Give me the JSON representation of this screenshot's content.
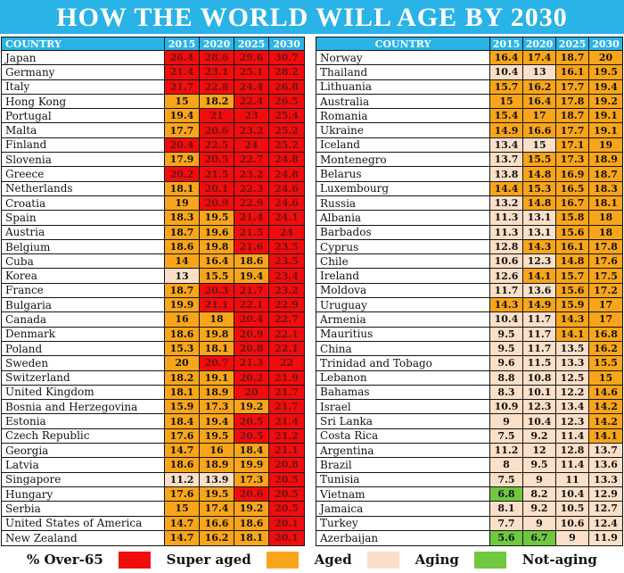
{
  "title": "HOW THE WORLD WILL AGE BY 2030",
  "columns": [
    "COUNTRY",
    "2015",
    "2020",
    "2025",
    "2030"
  ],
  "colors": {
    "header_bg": "#2ab3e6",
    "title_bg": "#2ab3e6",
    "super_aged": "#f10d0d",
    "aged": "#f9a51b",
    "aging": "#fbdfc8",
    "not_aging": "#6fc840",
    "super_aged_text": "#6e1111"
  },
  "legend": {
    "label": "% Over-65",
    "items": [
      {
        "key": "super-aged",
        "label": "Super aged",
        "color": "#f10d0d"
      },
      {
        "key": "aged",
        "label": "Aged",
        "color": "#f9a51b"
      },
      {
        "key": "aging",
        "label": "Aging",
        "color": "#fbdfc8"
      },
      {
        "key": "not-aging",
        "label": "Not-aging",
        "color": "#6fc840"
      }
    ]
  },
  "chart_data": {
    "type": "table",
    "title": "HOW THE WORLD WILL AGE BY 2030",
    "value_unit": "% Over-65",
    "years": [
      "2015",
      "2020",
      "2025",
      "2030"
    ],
    "level_legend": {
      "S": "Super aged",
      "A": "Aged",
      "G": "Aging",
      "N": "Not-aging"
    },
    "left_table": {
      "rows": [
        {
          "country": "Japan",
          "values": [
            "26.4",
            "28.6",
            "29.6",
            "30.7"
          ],
          "levels": [
            "S",
            "S",
            "S",
            "S"
          ]
        },
        {
          "country": "Germany",
          "values": [
            "21.4",
            "23.1",
            "25.1",
            "28.2"
          ],
          "levels": [
            "S",
            "S",
            "S",
            "S"
          ]
        },
        {
          "country": "Italy",
          "values": [
            "21.7",
            "22.8",
            "24.4",
            "26.8"
          ],
          "levels": [
            "S",
            "S",
            "S",
            "S"
          ]
        },
        {
          "country": "Hong Kong",
          "values": [
            "15",
            "18.2",
            "22.4",
            "26.5"
          ],
          "levels": [
            "A",
            "A",
            "S",
            "S"
          ]
        },
        {
          "country": "Portugal",
          "values": [
            "19.4",
            "21",
            "23",
            "25.4"
          ],
          "levels": [
            "A",
            "S",
            "S",
            "S"
          ]
        },
        {
          "country": "Malta",
          "values": [
            "17.7",
            "20.6",
            "23.2",
            "25.2"
          ],
          "levels": [
            "A",
            "S",
            "S",
            "S"
          ]
        },
        {
          "country": "Finland",
          "values": [
            "20.4",
            "22.5",
            "24",
            "25.2"
          ],
          "levels": [
            "S",
            "S",
            "S",
            "S"
          ]
        },
        {
          "country": "Slovenia",
          "values": [
            "17.9",
            "20.5",
            "22.7",
            "24.8"
          ],
          "levels": [
            "A",
            "S",
            "S",
            "S"
          ]
        },
        {
          "country": "Greece",
          "values": [
            "20.2",
            "21.5",
            "23.2",
            "24.8"
          ],
          "levels": [
            "S",
            "S",
            "S",
            "S"
          ]
        },
        {
          "country": "Netherlands",
          "values": [
            "18.1",
            "20.1",
            "22.3",
            "24.6"
          ],
          "levels": [
            "A",
            "S",
            "S",
            "S"
          ]
        },
        {
          "country": "Croatia",
          "values": [
            "19",
            "20.9",
            "22.9",
            "24.6"
          ],
          "levels": [
            "A",
            "S",
            "S",
            "S"
          ]
        },
        {
          "country": "Spain",
          "values": [
            "18.3",
            "19.5",
            "21.4",
            "24.1"
          ],
          "levels": [
            "A",
            "A",
            "S",
            "S"
          ]
        },
        {
          "country": "Austria",
          "values": [
            "18.7",
            "19.6",
            "21.5",
            "24"
          ],
          "levels": [
            "A",
            "A",
            "S",
            "S"
          ]
        },
        {
          "country": "Belgium",
          "values": [
            "18.6",
            "19.8",
            "21.6",
            "23.5"
          ],
          "levels": [
            "A",
            "A",
            "S",
            "S"
          ]
        },
        {
          "country": "Cuba",
          "values": [
            "14",
            "16.4",
            "18.6",
            "23.5"
          ],
          "levels": [
            "A",
            "A",
            "A",
            "S"
          ]
        },
        {
          "country": "Korea",
          "values": [
            "13",
            "15.5",
            "19.4",
            "23.4"
          ],
          "levels": [
            "G",
            "A",
            "A",
            "S"
          ]
        },
        {
          "country": "France",
          "values": [
            "18.7",
            "20.3",
            "21.7",
            "23.2"
          ],
          "levels": [
            "A",
            "S",
            "S",
            "S"
          ]
        },
        {
          "country": "Bulgaria",
          "values": [
            "19.9",
            "21.1",
            "22.1",
            "22.9"
          ],
          "levels": [
            "A",
            "S",
            "S",
            "S"
          ]
        },
        {
          "country": "Canada",
          "values": [
            "16",
            "18",
            "20.4",
            "22.7"
          ],
          "levels": [
            "A",
            "A",
            "S",
            "S"
          ]
        },
        {
          "country": "Denmark",
          "values": [
            "18.6",
            "19.8",
            "20.9",
            "22.1"
          ],
          "levels": [
            "A",
            "A",
            "S",
            "S"
          ]
        },
        {
          "country": "Poland",
          "values": [
            "15.3",
            "18.1",
            "20.8",
            "22.1"
          ],
          "levels": [
            "A",
            "A",
            "S",
            "S"
          ]
        },
        {
          "country": "Sweden",
          "values": [
            "20",
            "20.7",
            "21.3",
            "22"
          ],
          "levels": [
            "A",
            "S",
            "S",
            "S"
          ]
        },
        {
          "country": "Switzerland",
          "values": [
            "18.2",
            "19.1",
            "20.2",
            "21.9"
          ],
          "levels": [
            "A",
            "A",
            "S",
            "S"
          ]
        },
        {
          "country": "United Kingdom",
          "values": [
            "18.1",
            "18.9",
            "20",
            "21.7"
          ],
          "levels": [
            "A",
            "A",
            "S",
            "S"
          ]
        },
        {
          "country": "Bosnia and Herzegovina",
          "values": [
            "15.9",
            "17.3",
            "19.2",
            "21.7"
          ],
          "levels": [
            "A",
            "A",
            "A",
            "S"
          ]
        },
        {
          "country": "Estonia",
          "values": [
            "18.4",
            "19.4",
            "20.5",
            "21.4"
          ],
          "levels": [
            "A",
            "A",
            "S",
            "S"
          ]
        },
        {
          "country": "Czech Republic",
          "values": [
            "17.6",
            "19.5",
            "20.5",
            "21.2"
          ],
          "levels": [
            "A",
            "A",
            "S",
            "S"
          ]
        },
        {
          "country": "Georgia",
          "values": [
            "14.7",
            "16",
            "18.4",
            "21.1"
          ],
          "levels": [
            "A",
            "A",
            "A",
            "S"
          ]
        },
        {
          "country": "Latvia",
          "values": [
            "18.6",
            "18.9",
            "19.9",
            "20.8"
          ],
          "levels": [
            "A",
            "A",
            "A",
            "S"
          ]
        },
        {
          "country": "Singapore",
          "values": [
            "11.2",
            "13.9",
            "17.3",
            "20.5"
          ],
          "levels": [
            "G",
            "G",
            "A",
            "S"
          ]
        },
        {
          "country": "Hungary",
          "values": [
            "17.6",
            "19.5",
            "20.6",
            "20.5"
          ],
          "levels": [
            "A",
            "A",
            "S",
            "S"
          ]
        },
        {
          "country": "Serbia",
          "values": [
            "15",
            "17.4",
            "19.2",
            "20.5"
          ],
          "levels": [
            "A",
            "A",
            "A",
            "S"
          ]
        },
        {
          "country": "United States of America",
          "values": [
            "14.7",
            "16.6",
            "18.6",
            "20.1"
          ],
          "levels": [
            "A",
            "A",
            "A",
            "S"
          ]
        },
        {
          "country": "New Zealand",
          "values": [
            "14.7",
            "16.2",
            "18.1",
            "20.1"
          ],
          "levels": [
            "A",
            "A",
            "A",
            "S"
          ]
        }
      ]
    },
    "right_table": {
      "rows": [
        {
          "country": "Norway",
          "values": [
            "16.4",
            "17.4",
            "18.7",
            "20"
          ],
          "levels": [
            "A",
            "A",
            "A",
            "A"
          ]
        },
        {
          "country": "Thailand",
          "values": [
            "10.4",
            "13",
            "16.1",
            "19.5"
          ],
          "levels": [
            "G",
            "G",
            "A",
            "A"
          ]
        },
        {
          "country": "Lithuania",
          "values": [
            "15.7",
            "16.2",
            "17.7",
            "19.4"
          ],
          "levels": [
            "A",
            "A",
            "A",
            "A"
          ]
        },
        {
          "country": "Australia",
          "values": [
            "15",
            "16.4",
            "17.8",
            "19.2"
          ],
          "levels": [
            "A",
            "A",
            "A",
            "A"
          ]
        },
        {
          "country": "Romania",
          "values": [
            "15.4",
            "17",
            "18.7",
            "19.1"
          ],
          "levels": [
            "A",
            "A",
            "A",
            "A"
          ]
        },
        {
          "country": "Ukraine",
          "values": [
            "14.9",
            "16.6",
            "17.7",
            "19.1"
          ],
          "levels": [
            "A",
            "A",
            "A",
            "A"
          ]
        },
        {
          "country": "Iceland",
          "values": [
            "13.4",
            "15",
            "17.1",
            "19"
          ],
          "levels": [
            "G",
            "G",
            "A",
            "A"
          ]
        },
        {
          "country": "Montenegro",
          "values": [
            "13.7",
            "15.5",
            "17.3",
            "18.9"
          ],
          "levels": [
            "G",
            "A",
            "A",
            "A"
          ]
        },
        {
          "country": "Belarus",
          "values": [
            "13.8",
            "14.8",
            "16.9",
            "18.7"
          ],
          "levels": [
            "G",
            "A",
            "A",
            "A"
          ]
        },
        {
          "country": "Luxembourg",
          "values": [
            "14.4",
            "15.3",
            "16.5",
            "18.3"
          ],
          "levels": [
            "A",
            "A",
            "A",
            "A"
          ]
        },
        {
          "country": "Russia",
          "values": [
            "13.2",
            "14.8",
            "16.7",
            "18.1"
          ],
          "levels": [
            "G",
            "A",
            "A",
            "A"
          ]
        },
        {
          "country": "Albania",
          "values": [
            "11.3",
            "13.1",
            "15.8",
            "18"
          ],
          "levels": [
            "G",
            "G",
            "A",
            "A"
          ]
        },
        {
          "country": "Barbados",
          "values": [
            "11.3",
            "13.1",
            "15.6",
            "18"
          ],
          "levels": [
            "G",
            "G",
            "A",
            "A"
          ]
        },
        {
          "country": "Cyprus",
          "values": [
            "12.8",
            "14.3",
            "16.1",
            "17.8"
          ],
          "levels": [
            "G",
            "A",
            "A",
            "A"
          ]
        },
        {
          "country": "Chile",
          "values": [
            "10.6",
            "12.3",
            "14.8",
            "17.6"
          ],
          "levels": [
            "G",
            "G",
            "A",
            "A"
          ]
        },
        {
          "country": "Ireland",
          "values": [
            "12.6",
            "14.1",
            "15.7",
            "17.5"
          ],
          "levels": [
            "G",
            "A",
            "A",
            "A"
          ]
        },
        {
          "country": "Moldova",
          "values": [
            "11.7",
            "13.6",
            "15.6",
            "17.2"
          ],
          "levels": [
            "G",
            "G",
            "A",
            "A"
          ]
        },
        {
          "country": "Uruguay",
          "values": [
            "14.3",
            "14.9",
            "15.9",
            "17"
          ],
          "levels": [
            "A",
            "A",
            "A",
            "A"
          ]
        },
        {
          "country": "Armenia",
          "values": [
            "10.4",
            "11.7",
            "14.3",
            "17"
          ],
          "levels": [
            "G",
            "G",
            "A",
            "A"
          ]
        },
        {
          "country": "Mauritius",
          "values": [
            "9.5",
            "11.7",
            "14.1",
            "16.8"
          ],
          "levels": [
            "G",
            "G",
            "A",
            "A"
          ]
        },
        {
          "country": "China",
          "values": [
            "9.5",
            "11.7",
            "13.5",
            "16.2"
          ],
          "levels": [
            "G",
            "G",
            "G",
            "A"
          ]
        },
        {
          "country": "Trinidad and Tobago",
          "values": [
            "9.6",
            "11.5",
            "13.3",
            "15.5"
          ],
          "levels": [
            "G",
            "G",
            "G",
            "A"
          ]
        },
        {
          "country": "Lebanon",
          "values": [
            "8.8",
            "10.8",
            "12.5",
            "15"
          ],
          "levels": [
            "G",
            "G",
            "G",
            "A"
          ]
        },
        {
          "country": "Bahamas",
          "values": [
            "8.3",
            "10.1",
            "12.2",
            "14.6"
          ],
          "levels": [
            "G",
            "G",
            "G",
            "A"
          ]
        },
        {
          "country": "Israel",
          "values": [
            "10.9",
            "12.3",
            "13.4",
            "14.2"
          ],
          "levels": [
            "G",
            "G",
            "G",
            "A"
          ]
        },
        {
          "country": "Sri Lanka",
          "values": [
            "9",
            "10.4",
            "12.3",
            "14.2"
          ],
          "levels": [
            "G",
            "G",
            "G",
            "A"
          ]
        },
        {
          "country": "Costa Rica",
          "values": [
            "7.5",
            "9.2",
            "11.4",
            "14.1"
          ],
          "levels": [
            "G",
            "G",
            "G",
            "A"
          ]
        },
        {
          "country": "Argentina",
          "values": [
            "11.2",
            "12",
            "12.8",
            "13.7"
          ],
          "levels": [
            "G",
            "G",
            "G",
            "G"
          ]
        },
        {
          "country": "Brazil",
          "values": [
            "8",
            "9.5",
            "11.4",
            "13.6"
          ],
          "levels": [
            "G",
            "G",
            "G",
            "G"
          ]
        },
        {
          "country": "Tunisia",
          "values": [
            "7.5",
            "9",
            "11",
            "13.3"
          ],
          "levels": [
            "G",
            "G",
            "G",
            "G"
          ]
        },
        {
          "country": "Vietnam",
          "values": [
            "6.8",
            "8.2",
            "10.4",
            "12.9"
          ],
          "levels": [
            "N",
            "G",
            "G",
            "G"
          ]
        },
        {
          "country": "Jamaica",
          "values": [
            "8.1",
            "9.2",
            "10.5",
            "12.7"
          ],
          "levels": [
            "G",
            "G",
            "G",
            "G"
          ]
        },
        {
          "country": "Turkey",
          "values": [
            "7.7",
            "9",
            "10.6",
            "12.4"
          ],
          "levels": [
            "G",
            "G",
            "G",
            "G"
          ]
        },
        {
          "country": "Azerbaijan",
          "values": [
            "5.6",
            "6.7",
            "9",
            "11.9"
          ],
          "levels": [
            "N",
            "N",
            "G",
            "G"
          ]
        }
      ]
    }
  }
}
